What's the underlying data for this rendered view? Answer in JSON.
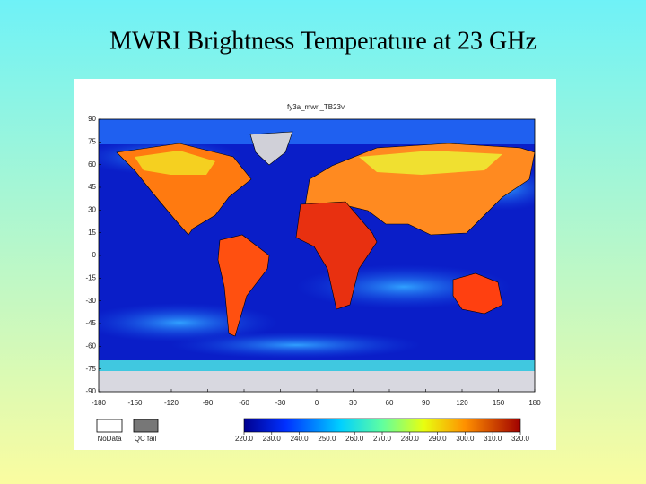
{
  "title": "MWRI Brightness Temperature at 23 GHz",
  "map": {
    "title": "fy3a_mwri_TB23v",
    "xlim": [
      -180,
      180
    ],
    "xticks": [
      -180,
      -150,
      -120,
      -90,
      -60,
      -30,
      0,
      30,
      60,
      90,
      120,
      150,
      180
    ],
    "ylim": [
      -90,
      90
    ],
    "yticks": [
      90,
      75,
      60,
      45,
      30,
      15,
      0,
      -15,
      -30,
      -45,
      -60,
      -75,
      -90
    ],
    "legend": [
      "NoData",
      "QC fail"
    ],
    "colorbar": {
      "lim": [
        220,
        320
      ],
      "ticks": [
        {
          "value": 220,
          "label": "220.0"
        },
        {
          "value": 230,
          "label": "230.0"
        },
        {
          "value": 240,
          "label": "240.0"
        },
        {
          "value": 250,
          "label": "250.0"
        },
        {
          "value": 260,
          "label": "260.0"
        },
        {
          "value": 270,
          "label": "270.0"
        },
        {
          "value": 280,
          "label": "280.0"
        },
        {
          "value": 290,
          "label": "290.0"
        },
        {
          "value": 300,
          "label": "300.0"
        },
        {
          "value": 310,
          "label": "310.0"
        },
        {
          "value": 320,
          "label": "320.0"
        }
      ]
    }
  }
}
